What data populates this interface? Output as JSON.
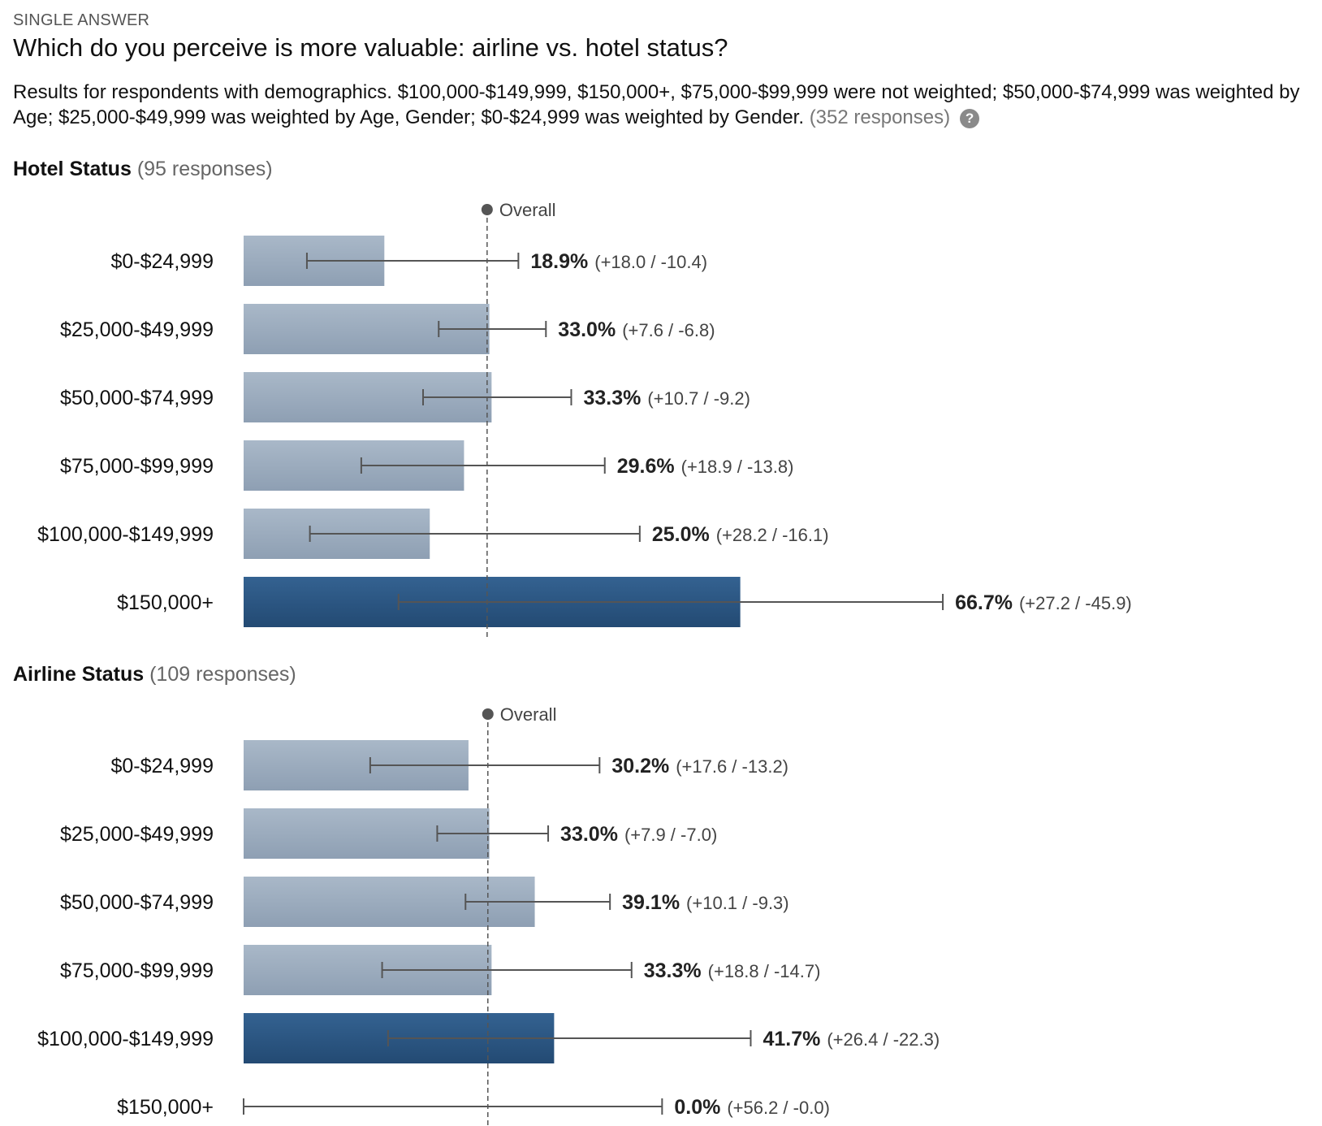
{
  "header": {
    "kicker": "SINGLE ANSWER",
    "question": "Which do you perceive is more valuable: airline vs. hotel status?",
    "description": "Results for respondents with demographics. $100,000-$149,999, $150,000+, $75,000-$99,999 were not weighted; $50,000-$74,999 was weighted by Age; $25,000-$49,999 was weighted by Age, Gender; $0-$24,999 was weighted by Gender.",
    "total_responses": "(352 responses)",
    "help_icon": "question-circle-icon"
  },
  "colors": {
    "bar_normal": "#9aabbe",
    "bar_highlight": "#2b5480",
    "error_bar": "#555555",
    "overall_line": "#555555"
  },
  "sections": [
    {
      "title": "Hotel Status",
      "responses": "(95 responses)",
      "overall_label": "Overall"
    },
    {
      "title": "Airline Status",
      "responses": "(109 responses)",
      "overall_label": "Overall"
    }
  ],
  "chart_data": [
    {
      "type": "bar",
      "orientation": "horizontal",
      "title": "Hotel Status",
      "categories": [
        "$0-$24,999",
        "$25,000-$49,999",
        "$50,000-$74,999",
        "$75,000-$99,999",
        "$100,000-$149,999",
        "$150,000+"
      ],
      "values": [
        18.9,
        33.0,
        33.3,
        29.6,
        25.0,
        66.7
      ],
      "value_labels": [
        "18.9%",
        "33.0%",
        "33.3%",
        "29.6%",
        "25.0%",
        "66.7%"
      ],
      "error_plus": [
        18.0,
        7.6,
        10.7,
        18.9,
        28.2,
        27.2
      ],
      "error_minus": [
        10.4,
        6.8,
        9.2,
        13.8,
        16.1,
        45.9
      ],
      "error_labels": [
        "(+18.0 / -10.4)",
        "(+7.6 / -6.8)",
        "(+10.7 / -9.2)",
        "(+18.9 / -13.8)",
        "(+28.2 / -16.1)",
        "(+27.2 / -45.9)"
      ],
      "highlighted": [
        false,
        false,
        false,
        false,
        false,
        true
      ],
      "overall": 32.7,
      "overall_label": "Overall",
      "xlim": [
        0,
        100
      ],
      "grid": false
    },
    {
      "type": "bar",
      "orientation": "horizontal",
      "title": "Airline Status",
      "categories": [
        "$0-$24,999",
        "$25,000-$49,999",
        "$50,000-$74,999",
        "$75,000-$99,999",
        "$100,000-$149,999",
        "$150,000+"
      ],
      "values": [
        30.2,
        33.0,
        39.1,
        33.3,
        41.7,
        0.0
      ],
      "value_labels": [
        "30.2%",
        "33.0%",
        "39.1%",
        "33.3%",
        "41.7%",
        "0.0%"
      ],
      "error_plus": [
        17.6,
        7.9,
        10.1,
        18.8,
        26.4,
        56.2
      ],
      "error_minus": [
        13.2,
        7.0,
        9.3,
        14.7,
        22.3,
        0.0
      ],
      "error_labels": [
        "(+17.6 / -13.2)",
        "(+7.9 / -7.0)",
        "(+10.1 / -9.3)",
        "(+18.8 / -14.7)",
        "(+26.4 / -22.3)",
        "(+56.2 / -0.0)"
      ],
      "highlighted": [
        false,
        false,
        false,
        false,
        true,
        false
      ],
      "overall": 32.8,
      "overall_label": "Overall",
      "xlim": [
        0,
        100
      ],
      "grid": false
    }
  ]
}
